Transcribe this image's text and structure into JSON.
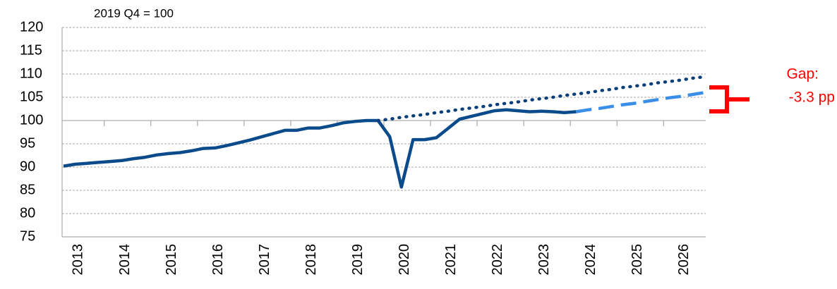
{
  "chart_data": {
    "type": "line",
    "subtitle": "2019 Q4 = 100",
    "annotations": [
      "Gap:",
      "-3.3 pp"
    ],
    "annotation_color": "#ff0000",
    "categories": [
      "2013",
      null,
      null,
      null,
      "2014",
      null,
      null,
      null,
      "2015",
      null,
      null,
      null,
      "2016",
      null,
      null,
      null,
      "2017",
      null,
      null,
      null,
      "2018",
      null,
      null,
      null,
      "2019",
      null,
      null,
      null,
      "2020",
      null,
      null,
      null,
      "2021",
      null,
      null,
      null,
      "2022",
      null,
      null,
      null,
      "2023",
      null,
      null,
      null,
      "2024",
      null,
      null,
      null,
      "2025",
      null,
      null,
      null,
      "2026",
      null,
      null,
      null
    ],
    "series": [
      {
        "color": "#0b4a8b",
        "line_style": "solid",
        "values": [
          90.2,
          90.6,
          90.8,
          91.0,
          91.2,
          91.4,
          91.8,
          92.1,
          92.6,
          92.9,
          93.1,
          93.5,
          94.0,
          94.1,
          94.6,
          95.2,
          95.8,
          96.5,
          97.2,
          97.9,
          97.9,
          98.4,
          98.4,
          98.9,
          99.5,
          99.8,
          100.0,
          100.0,
          96.5,
          85.7,
          95.9,
          95.9,
          96.3,
          98.3,
          100.3,
          100.9,
          101.5,
          102.1,
          102.3,
          102.1,
          101.9,
          102.0,
          101.9,
          101.7,
          101.9,
          null,
          null,
          null,
          null,
          null,
          null,
          null,
          null,
          null,
          null,
          null
        ]
      },
      {
        "color": "#3b8ee8",
        "line_style": "dashed",
        "values": [
          null,
          null,
          null,
          null,
          null,
          null,
          null,
          null,
          null,
          null,
          null,
          null,
          null,
          null,
          null,
          null,
          null,
          null,
          null,
          null,
          null,
          null,
          null,
          null,
          null,
          null,
          null,
          null,
          null,
          null,
          null,
          null,
          null,
          null,
          null,
          null,
          null,
          null,
          null,
          null,
          null,
          null,
          null,
          null,
          101.9,
          102.3,
          102.6,
          103.0,
          103.4,
          103.7,
          104.1,
          104.5,
          104.9,
          105.2,
          105.6,
          106.0
        ]
      },
      {
        "color": "#0b3f7a",
        "line_style": "dotted",
        "values": [
          null,
          null,
          null,
          null,
          null,
          null,
          null,
          null,
          null,
          null,
          null,
          null,
          null,
          null,
          null,
          null,
          null,
          null,
          null,
          null,
          null,
          null,
          null,
          null,
          null,
          null,
          null,
          100.0,
          100.3,
          100.7,
          101.0,
          101.3,
          101.7,
          102.0,
          102.4,
          102.7,
          103.0,
          103.4,
          103.7,
          104.0,
          104.4,
          104.7,
          105.0,
          105.4,
          105.7,
          106.0,
          106.4,
          106.7,
          107.1,
          107.4,
          107.7,
          108.1,
          108.4,
          108.7,
          109.1,
          109.4
        ]
      }
    ],
    "ylim": [
      75,
      120
    ],
    "yticks": [
      75,
      80,
      85,
      90,
      95,
      100,
      105,
      110,
      115,
      120
    ],
    "xaxis_crosses": 100,
    "grid": true
  }
}
